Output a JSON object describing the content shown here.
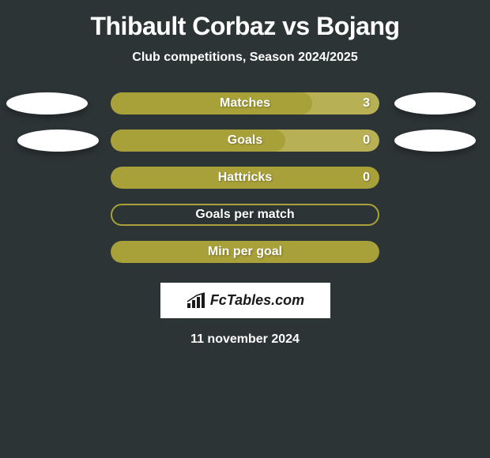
{
  "title": "Thibault Corbaz vs Bojang",
  "subtitle": "Club competitions, Season 2024/2025",
  "date": "11 november 2024",
  "logo_text": "FcTables.com",
  "colors": {
    "background": "#2d3436",
    "bar_olive": "#a8a039",
    "bar_olive_light": "#b8b055",
    "text": "#ffffff",
    "oval": "#ffffff"
  },
  "stats": [
    {
      "label": "Matches",
      "value": "3",
      "bar_fill_color": "#a8a039",
      "bar_bg_color": "#b8b055",
      "fill_percent": 75,
      "has_border": false,
      "show_value": true,
      "show_left_oval": true,
      "show_right_oval": true,
      "left_oval_offset": 8,
      "right_oval_offset": 18
    },
    {
      "label": "Goals",
      "value": "0",
      "bar_fill_color": "#a8a039",
      "bar_bg_color": "#b8b055",
      "fill_percent": 65,
      "has_border": false,
      "show_value": true,
      "show_left_oval": true,
      "show_right_oval": true,
      "left_oval_offset": 22,
      "right_oval_offset": 18
    },
    {
      "label": "Hattricks",
      "value": "0",
      "bar_fill_color": "#a8a039",
      "bar_bg_color": "#a8a039",
      "fill_percent": 100,
      "has_border": false,
      "show_value": true,
      "show_left_oval": false,
      "show_right_oval": false
    },
    {
      "label": "Goals per match",
      "value": "",
      "bar_fill_color": "transparent",
      "bar_bg_color": "transparent",
      "fill_percent": 0,
      "has_border": true,
      "border_color": "#a8a039",
      "show_value": false,
      "show_left_oval": false,
      "show_right_oval": false
    },
    {
      "label": "Min per goal",
      "value": "",
      "bar_fill_color": "#a8a039",
      "bar_bg_color": "#a8a039",
      "fill_percent": 100,
      "has_border": false,
      "show_value": false,
      "show_left_oval": false,
      "show_right_oval": false
    }
  ]
}
